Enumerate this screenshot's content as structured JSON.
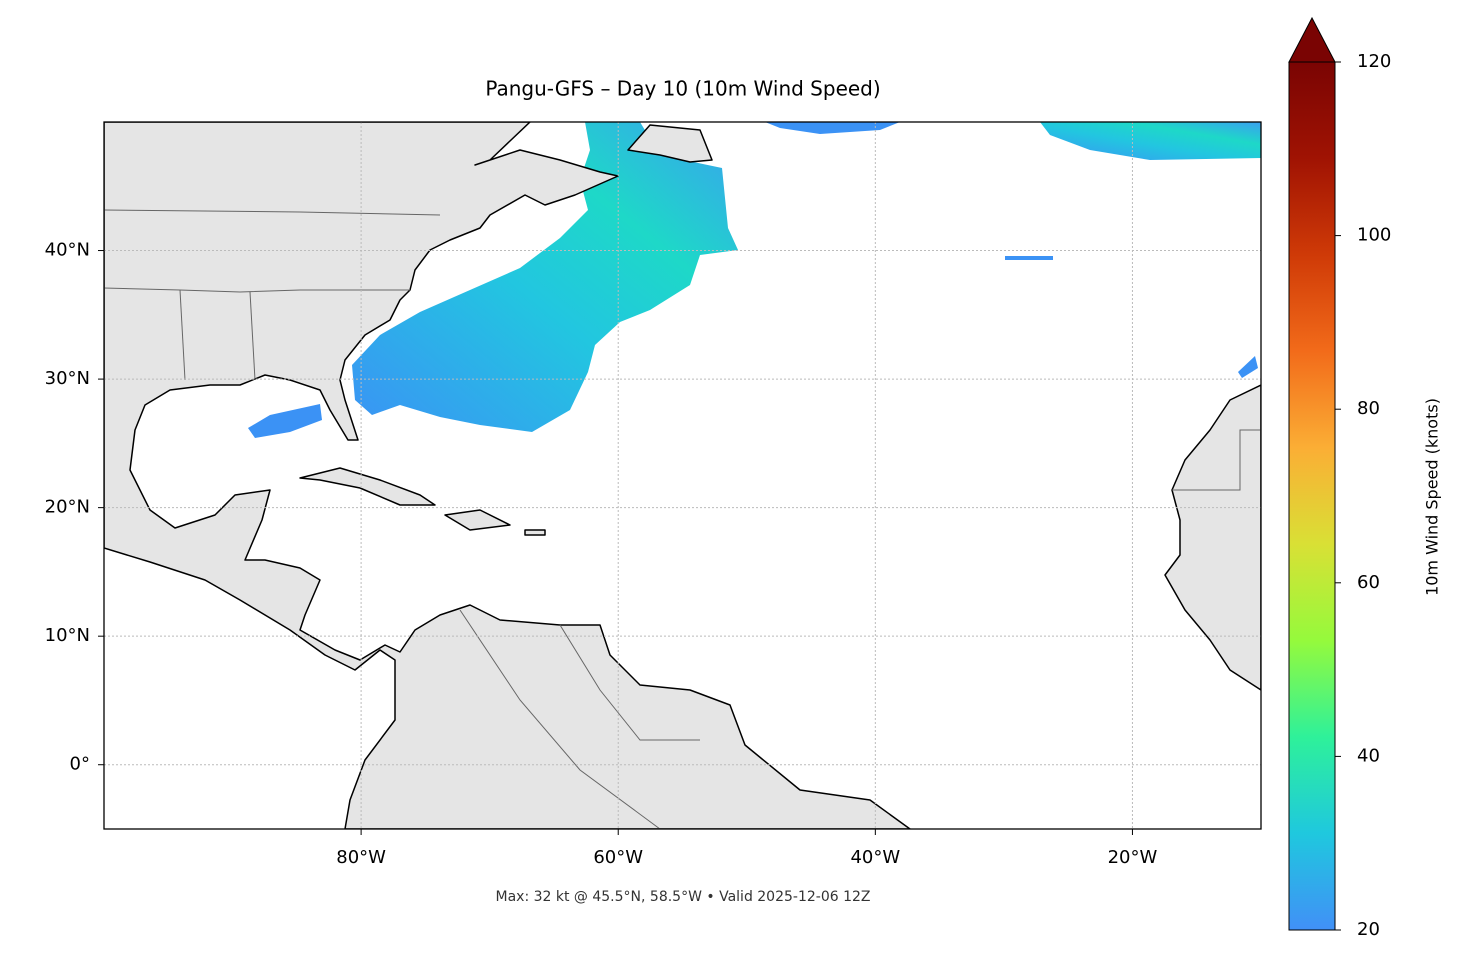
{
  "map": {
    "title": "Pangu-GFS – Day 10 (10m Wind Speed)",
    "footer": "Max: 32 kt @ 45.5°N, 58.5°W • Valid 2025-12-06 12Z",
    "lon_range": [
      -100,
      -10
    ],
    "lat_range": [
      -5,
      50
    ],
    "lon_ticks": [
      {
        "value": -80,
        "label": "80°W"
      },
      {
        "value": -60,
        "label": "60°W"
      },
      {
        "value": -40,
        "label": "40°W"
      },
      {
        "value": -20,
        "label": "20°W"
      }
    ],
    "lat_ticks": [
      {
        "value": 0,
        "label": "0°"
      },
      {
        "value": 10,
        "label": "10°N"
      },
      {
        "value": 20,
        "label": "20°N"
      },
      {
        "value": 30,
        "label": "30°N"
      },
      {
        "value": 40,
        "label": "40°N"
      }
    ],
    "grid": true,
    "colorbar": {
      "label": "10m Wind Speed (knots)",
      "range": [
        20,
        120
      ],
      "ticks": [
        20,
        40,
        60,
        80,
        100,
        120
      ],
      "extend": "max",
      "colormap": [
        "#4190f7",
        "#1fc8de",
        "#2ef19a",
        "#95fa3c",
        "#d9e035",
        "#fbae35",
        "#f26b1a",
        "#cf3a07",
        "#a01303",
        "#7a0403"
      ]
    }
  }
}
